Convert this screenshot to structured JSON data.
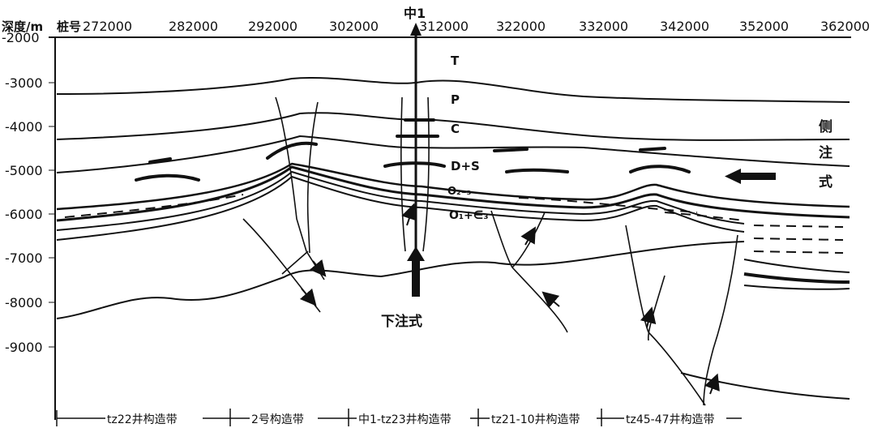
{
  "header": {
    "depth_label": "深度/m",
    "station_label": "桩号",
    "well_label": "中1"
  },
  "x_ticks": [
    "272000",
    "282000",
    "292000",
    "302000",
    "312000",
    "322000",
    "332000",
    "342000",
    "352000",
    "362000"
  ],
  "y_ticks": [
    "-2000",
    "-3000",
    "-4000",
    "-5000",
    "-6000",
    "-7000",
    "-8000",
    "-9000"
  ],
  "layer_labels": {
    "T": "T",
    "P": "P",
    "C": "C",
    "DS": "D+S",
    "O23": "O₂₋₃",
    "O1": "O₁+∈₃"
  },
  "side_injection": [
    "侧",
    "注",
    "式"
  ],
  "down_injection": "下注式",
  "zones": [
    "tz22井构造带",
    "2号构造带",
    "中1-tz23井构造带",
    "tz21-10井构造带",
    "tz45-47井构造带"
  ]
}
